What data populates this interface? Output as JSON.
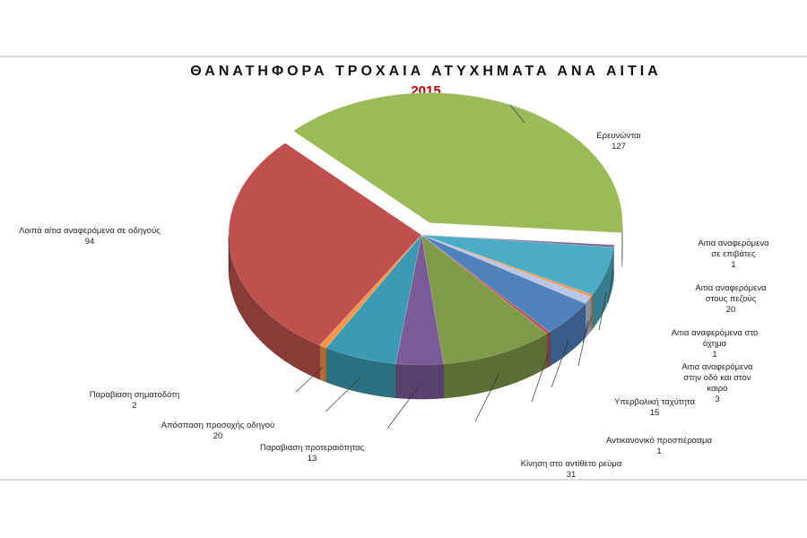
{
  "chart_data": {
    "type": "pie",
    "title": "ΘΑΝΑΤΗΦΟΡΑ ΤΡΟΧΑΙΑ ΑΤΥΧΗΜΑΤΑ ΑΝΑ ΑΙΤΙΑ",
    "subtitle": "2015",
    "categories": [
      "Ερευνώνται",
      "Αιτια αναφερόμενα σε επιβάτες",
      "Αιτια αναφερόμενα στους πεζούς",
      "Αιτια αναφερόμενα στο όχημα",
      "Αιτια αναφερόμενα στην οδό και στον καιρό",
      "Υπερβολική ταχύτητα",
      "Αντικανονικό προσπέρασμα",
      "Κίνηση στο αντίθετο ρεύμα",
      "Παραβιαση προτεραιότητας",
      "Απόσπαση προσοχής οδηγού",
      "Παραβιαση σηματοδότη",
      "Λοιπά αίτια αναφερόμενα σε οδηγούς"
    ],
    "values": [
      127,
      1,
      20,
      1,
      3,
      15,
      1,
      31,
      13,
      20,
      2,
      94
    ],
    "colors": [
      "#9bbb59",
      "#8064a2",
      "#4bacc6",
      "#f79646",
      "#b9c6e6",
      "#4f81bd",
      "#c0504d",
      "#7f9a48",
      "#7a5b97",
      "#3b9bb3",
      "#f79646",
      "#c0504d"
    ],
    "explode": [
      true,
      false,
      false,
      false,
      false,
      false,
      false,
      false,
      false,
      false,
      false,
      false
    ]
  }
}
